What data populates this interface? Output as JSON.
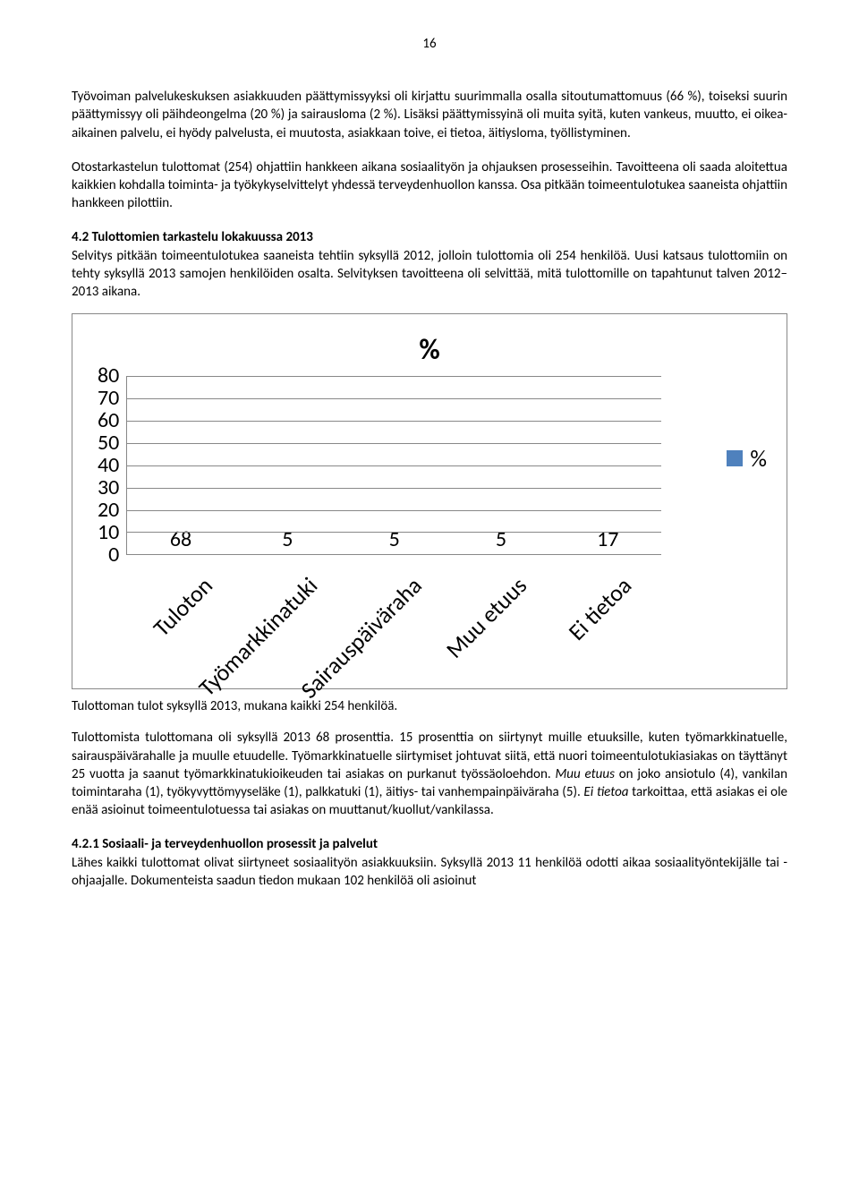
{
  "page_number": "16",
  "paragraphs": {
    "p1": "Työvoiman palvelukeskuksen asiakkuuden päättymissyyksi oli kirjattu suurimmalla osalla sitoutumattomuus (66 %), toiseksi suurin päättymissyy oli päihdeongelma (20 %) ja sairausloma (2 %). Lisäksi päättymissyinä oli muita syitä, kuten vankeus, muutto, ei oikea-aikainen palvelu, ei hyödy palvelusta, ei muutosta, asiakkaan toive, ei tietoa, äitiysloma, työllistyminen.",
    "p2": "Otostarkastelun tulottomat (254) ohjattiin hankkeen aikana sosiaalityön ja ohjauksen prosesseihin. Tavoitteena oli saada aloitettua kaikkien kohdalla toiminta- ja työkykyselvittelyt yhdessä terveydenhuollon kanssa. Osa pitkään toimeentulotukea saaneista ohjattiin hankkeen pilottiin.",
    "h1": "4.2 Tulottomien tarkastelu lokakuussa 2013",
    "p3": "Selvitys pitkään toimeentulotukea saaneista tehtiin syksyllä 2012, jolloin tulottomia oli 254 henkilöä. Uusi katsaus tulottomiin on tehty syksyllä 2013 samojen henkilöiden osalta. Selvityksen tavoitteena oli selvittää, mitä tulottomille on tapahtunut talven 2012–2013 aikana.",
    "caption": "Tulottoman tulot syksyllä 2013, mukana kaikki 254 henkilöä.",
    "p4a": "Tulottomista tulottomana oli syksyllä 2013 68 prosenttia. 15 prosenttia on siirtynyt muille etuuksille, kuten työmarkkinatuelle, sairauspäivärahalle ja muulle etuudelle. Työmarkkinatuelle siirtymiset johtuvat siitä, että nuori toimeentulotukiasiakas on täyttänyt 25 vuotta ja saanut työmarkkinatukioikeuden tai asiakas on purkanut työssäoloehdon. ",
    "p4b": "Muu etuus",
    "p4c": " on joko ansiotulo (4), vankilan toimintaraha (1), työkyvyttömyyseläke (1), palkkatuki (1), äitiys- tai vanhempainpäiväraha (5). ",
    "p4d": "Ei tietoa",
    "p4e": " tarkoittaa, että asiakas ei ole enää asioinut toimeentulotuessa tai asiakas on muuttanut/kuollut/vankilassa.",
    "h2": "4.2.1 Sosiaali- ja terveydenhuollon prosessit ja palvelut",
    "p5": "Lähes kaikki tulottomat olivat siirtyneet sosiaalityön asiakkuuksiin. Syksyllä 2013 11 henkilöä odotti aikaa sosiaalityöntekijälle tai -ohjaajalle. Dokumenteista saadun tiedon mukaan 102 henkilöä oli asioinut"
  },
  "chart": {
    "title": "%",
    "legend_label": "%",
    "y_ticks": [
      "80",
      "70",
      "60",
      "50",
      "40",
      "30",
      "20",
      "10",
      "0"
    ],
    "y_max": 80,
    "grid_color": "#888888",
    "bar_color": "#4f81bd",
    "background": "#ffffff",
    "bars": [
      {
        "label": "Tuloton",
        "value": 68
      },
      {
        "label": "Työmarkkinatuki",
        "value": 5
      },
      {
        "label": "Sairauspäiväraha",
        "value": 5
      },
      {
        "label": "Muu etuus",
        "value": 5
      },
      {
        "label": "Ei tietoa",
        "value": 17
      }
    ]
  }
}
